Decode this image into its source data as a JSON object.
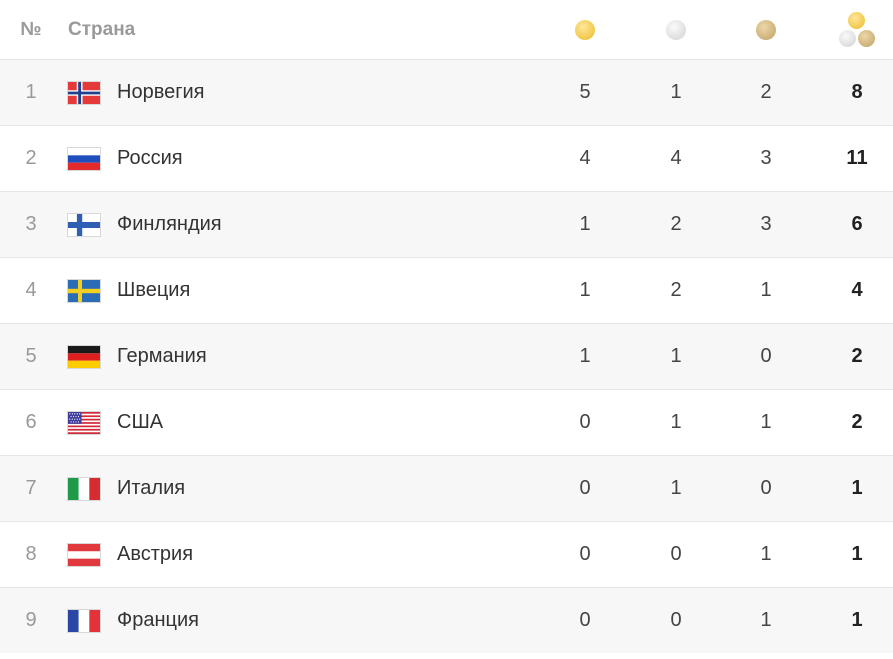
{
  "header": {
    "rank_label": "№",
    "country_label": "Страна"
  },
  "icons": {
    "gold": "gold-medal-icon",
    "silver": "silver-medal-icon",
    "bronze": "bronze-medal-icon",
    "total": "total-medals-icon"
  },
  "colors": {
    "gold": "#f1c84a",
    "silver": "#dddddd",
    "bronze": "#cdb078",
    "row_alt": "#f7f7f7",
    "divider": "#e6e6e6"
  },
  "rows": [
    {
      "rank": "1",
      "country": "Норвегия",
      "flag": "norway",
      "gold": "5",
      "silver": "1",
      "bronze": "2",
      "total": "8"
    },
    {
      "rank": "2",
      "country": "Россия",
      "flag": "russia",
      "gold": "4",
      "silver": "4",
      "bronze": "3",
      "total": "11"
    },
    {
      "rank": "3",
      "country": "Финляндия",
      "flag": "finland",
      "gold": "1",
      "silver": "2",
      "bronze": "3",
      "total": "6"
    },
    {
      "rank": "4",
      "country": "Швеция",
      "flag": "sweden",
      "gold": "1",
      "silver": "2",
      "bronze": "1",
      "total": "4"
    },
    {
      "rank": "5",
      "country": "Германия",
      "flag": "germany",
      "gold": "1",
      "silver": "1",
      "bronze": "0",
      "total": "2"
    },
    {
      "rank": "6",
      "country": "США",
      "flag": "usa",
      "gold": "0",
      "silver": "1",
      "bronze": "1",
      "total": "2"
    },
    {
      "rank": "7",
      "country": "Италия",
      "flag": "italy",
      "gold": "0",
      "silver": "1",
      "bronze": "0",
      "total": "1"
    },
    {
      "rank": "8",
      "country": "Австрия",
      "flag": "austria",
      "gold": "0",
      "silver": "0",
      "bronze": "1",
      "total": "1"
    },
    {
      "rank": "9",
      "country": "Франция",
      "flag": "france",
      "gold": "0",
      "silver": "0",
      "bronze": "1",
      "total": "1"
    }
  ]
}
